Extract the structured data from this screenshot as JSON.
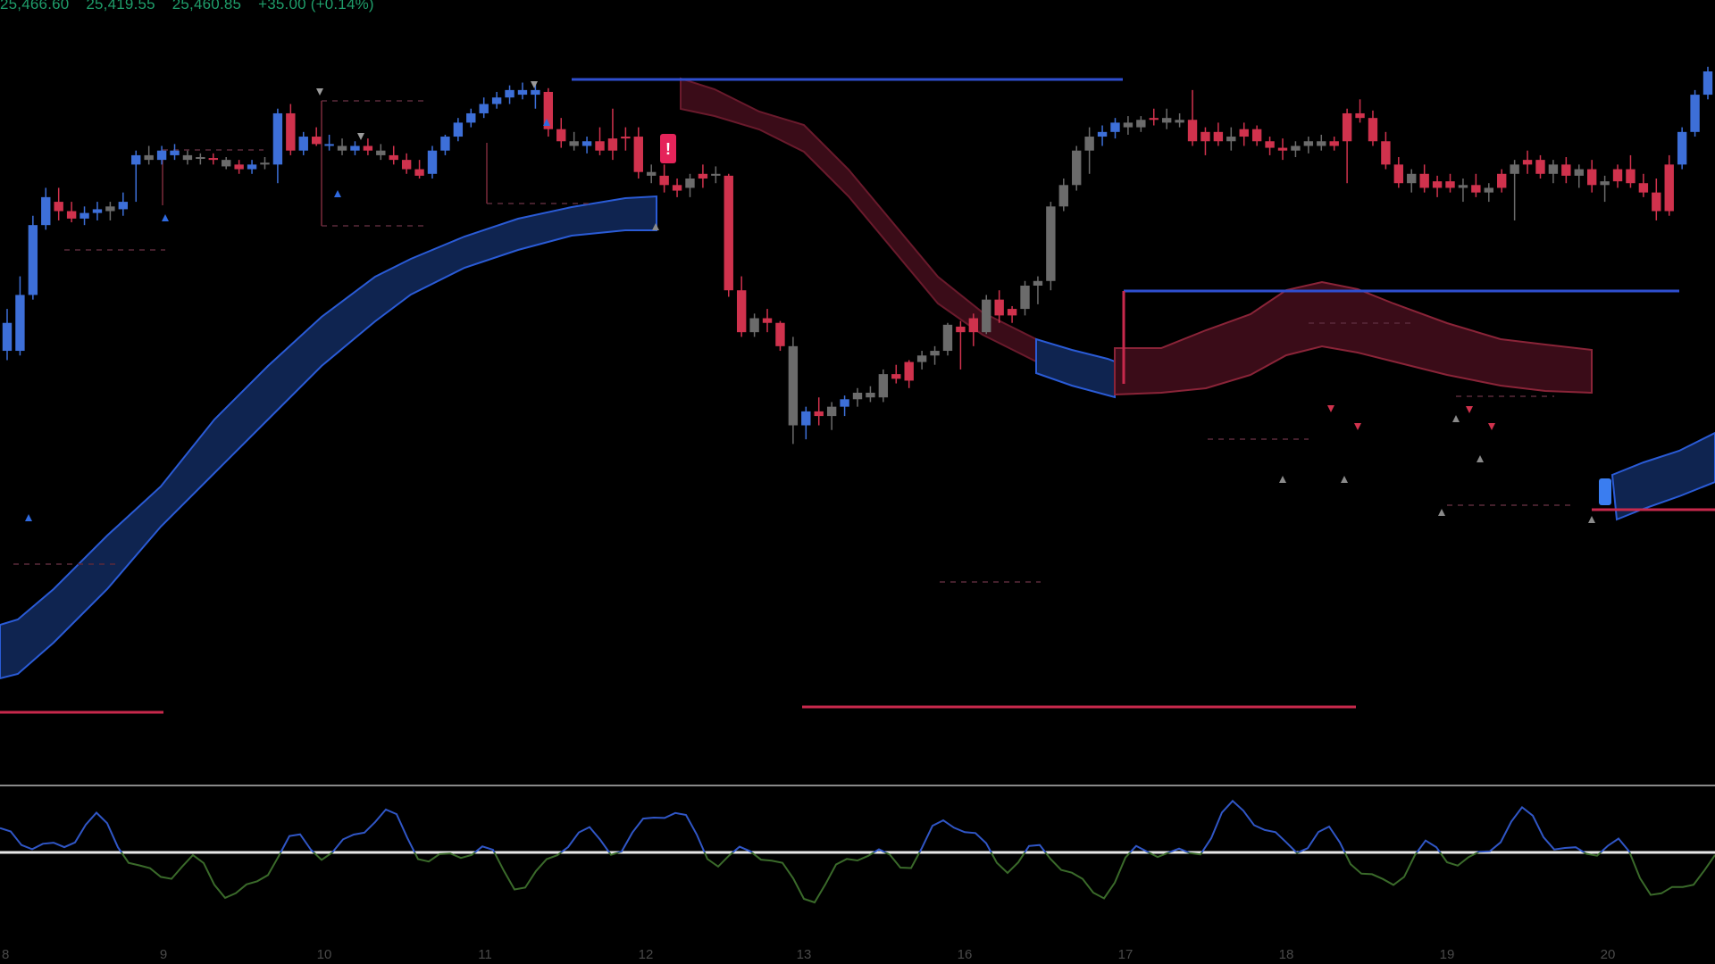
{
  "header": {
    "ohlc": [
      "25,466.60",
      "25,419.55",
      "25,460.85",
      "+35.00 (+0.14%)"
    ]
  },
  "colors": {
    "background": "#000000",
    "bull_candle": "#3d6fd8",
    "bear_candle": "#d0324d",
    "neutral_candle": "#6b6b6b",
    "bull_band": "#0f2450",
    "bear_band": "#3a0c18",
    "resistance_line": "#2f4fd0",
    "support_line": "#c7294c",
    "oscillator_bull": "#3056c6",
    "oscillator_bear": "#3a6a2a"
  },
  "signal": {
    "label": "!"
  },
  "chart_data": {
    "type": "candlestick",
    "x_ticks": [
      "8",
      "9",
      "10",
      "11",
      "12",
      "13",
      "16",
      "17",
      "18",
      "19",
      "20"
    ],
    "price_range": [
      25050,
      25740
    ],
    "candles": [
      [
        25470,
        25485,
        25430,
        25440,
        "bull"
      ],
      [
        25440,
        25520,
        25435,
        25500,
        "bull"
      ],
      [
        25500,
        25585,
        25495,
        25575,
        "bull"
      ],
      [
        25575,
        25615,
        25570,
        25605,
        "bull"
      ],
      [
        25600,
        25615,
        25580,
        25590,
        "bear"
      ],
      [
        25590,
        25600,
        25578,
        25582,
        "bear"
      ],
      [
        25582,
        25595,
        25575,
        25588,
        "bull"
      ],
      [
        25588,
        25600,
        25580,
        25592,
        "bull"
      ],
      [
        25595,
        25600,
        25580,
        25590,
        "neutral"
      ],
      [
        25592,
        25610,
        25585,
        25600,
        "bull"
      ],
      [
        25640,
        25655,
        25600,
        25650,
        "bull"
      ],
      [
        25650,
        25660,
        25640,
        25645,
        "neutral"
      ],
      [
        25645,
        25660,
        25640,
        25655,
        "bull"
      ],
      [
        25655,
        25662,
        25645,
        25650,
        "bull"
      ],
      [
        25650,
        25655,
        25640,
        25645,
        "neutral"
      ],
      [
        25648,
        25652,
        25640,
        25647,
        "neutral"
      ],
      [
        25647,
        25652,
        25640,
        25645,
        "bear"
      ],
      [
        25645,
        25648,
        25635,
        25638,
        "neutral"
      ],
      [
        25640,
        25645,
        25630,
        25635,
        "bear"
      ],
      [
        25635,
        25645,
        25630,
        25640,
        "bull"
      ],
      [
        25640,
        25648,
        25635,
        25642,
        "neutral"
      ],
      [
        25640,
        25700,
        25620,
        25695,
        "bull"
      ],
      [
        25695,
        25705,
        25650,
        25655,
        "bear"
      ],
      [
        25655,
        25675,
        25650,
        25670,
        "bull"
      ],
      [
        25670,
        25680,
        25660,
        25662,
        "bear"
      ],
      [
        25662,
        25672,
        25655,
        25660,
        "bull"
      ],
      [
        25660,
        25668,
        25650,
        25655,
        "neutral"
      ],
      [
        25655,
        25665,
        25650,
        25660,
        "bull"
      ],
      [
        25660,
        25668,
        25650,
        25655,
        "bear"
      ],
      [
        25655,
        25662,
        25645,
        25650,
        "neutral"
      ],
      [
        25650,
        25660,
        25640,
        25645,
        "bear"
      ],
      [
        25645,
        25652,
        25630,
        25635,
        "bear"
      ],
      [
        25635,
        25645,
        25625,
        25628,
        "bear"
      ],
      [
        25630,
        25660,
        25625,
        25655,
        "bull"
      ],
      [
        25655,
        25672,
        25650,
        25670,
        "bull"
      ],
      [
        25670,
        25690,
        25665,
        25685,
        "bull"
      ],
      [
        25685,
        25700,
        25680,
        25695,
        "bull"
      ],
      [
        25695,
        25712,
        25690,
        25705,
        "bull"
      ],
      [
        25705,
        25718,
        25700,
        25712,
        "bull"
      ],
      [
        25712,
        25725,
        25705,
        25720,
        "bull"
      ],
      [
        25720,
        25728,
        25710,
        25715,
        "bull"
      ],
      [
        25715,
        25728,
        25700,
        25720,
        "bull"
      ],
      [
        25718,
        25722,
        25670,
        25678,
        "bear"
      ],
      [
        25678,
        25690,
        25658,
        25665,
        "bear"
      ],
      [
        25665,
        25675,
        25655,
        25660,
        "neutral"
      ],
      [
        25660,
        25670,
        25652,
        25665,
        "bull"
      ],
      [
        25665,
        25680,
        25650,
        25655,
        "bear"
      ],
      [
        25655,
        25700,
        25645,
        25668,
        "bear"
      ],
      [
        25668,
        25680,
        25655,
        25670,
        "bear"
      ],
      [
        25670,
        25680,
        25625,
        25632,
        "bear"
      ],
      [
        25632,
        25640,
        25620,
        25628,
        "neutral"
      ],
      [
        25628,
        25640,
        25610,
        25618,
        "bear"
      ],
      [
        25618,
        25625,
        25605,
        25612,
        "bear"
      ],
      [
        25615,
        25630,
        25605,
        25625,
        "neutral"
      ],
      [
        25625,
        25640,
        25615,
        25630,
        "bear"
      ],
      [
        25630,
        25638,
        25620,
        25628,
        "neutral"
      ],
      [
        25628,
        25630,
        25498,
        25505,
        "bear"
      ],
      [
        25505,
        25520,
        25455,
        25460,
        "bear"
      ],
      [
        25460,
        25480,
        25455,
        25475,
        "neutral"
      ],
      [
        25475,
        25485,
        25460,
        25470,
        "bear"
      ],
      [
        25470,
        25472,
        25440,
        25445,
        "bear"
      ],
      [
        25445,
        25455,
        25340,
        25360,
        "neutral"
      ],
      [
        25360,
        25380,
        25345,
        25375,
        "bull"
      ],
      [
        25375,
        25390,
        25360,
        25370,
        "bear"
      ],
      [
        25370,
        25385,
        25355,
        25380,
        "neutral"
      ],
      [
        25380,
        25392,
        25370,
        25388,
        "bull"
      ],
      [
        25388,
        25400,
        25380,
        25395,
        "neutral"
      ],
      [
        25395,
        25402,
        25385,
        25390,
        "neutral"
      ],
      [
        25390,
        25420,
        25385,
        25415,
        "neutral"
      ],
      [
        25415,
        25425,
        25405,
        25410,
        "bear"
      ],
      [
        25408,
        25430,
        25400,
        25428,
        "bear"
      ],
      [
        25428,
        25440,
        25420,
        25435,
        "neutral"
      ],
      [
        25435,
        25445,
        25425,
        25440,
        "neutral"
      ],
      [
        25440,
        25470,
        25435,
        25468,
        "neutral"
      ],
      [
        25466,
        25472,
        25420,
        25460,
        "bear"
      ],
      [
        25460,
        25480,
        25445,
        25475,
        "bear"
      ],
      [
        25460,
        25500,
        25458,
        25495,
        "neutral"
      ],
      [
        25495,
        25505,
        25470,
        25478,
        "bear"
      ],
      [
        25478,
        25488,
        25470,
        25485,
        "bear"
      ],
      [
        25485,
        25515,
        25478,
        25510,
        "neutral"
      ],
      [
        25510,
        25520,
        25490,
        25515,
        "neutral"
      ],
      [
        25515,
        25600,
        25505,
        25595,
        "neutral"
      ],
      [
        25595,
        25625,
        25590,
        25618,
        "neutral"
      ],
      [
        25618,
        25660,
        25612,
        25655,
        "neutral"
      ],
      [
        25655,
        25680,
        25630,
        25670,
        "neutral"
      ],
      [
        25670,
        25682,
        25660,
        25675,
        "bull"
      ],
      [
        25675,
        25690,
        25668,
        25685,
        "bull"
      ],
      [
        25685,
        25692,
        25672,
        25680,
        "neutral"
      ],
      [
        25680,
        25692,
        25675,
        25688,
        "neutral"
      ],
      [
        25688,
        25700,
        25682,
        25690,
        "bear"
      ],
      [
        25690,
        25700,
        25678,
        25685,
        "neutral"
      ],
      [
        25685,
        25695,
        25680,
        25688,
        "neutral"
      ],
      [
        25688,
        25720,
        25660,
        25665,
        "bear"
      ],
      [
        25665,
        25680,
        25650,
        25675,
        "bear"
      ],
      [
        25675,
        25685,
        25660,
        25665,
        "bear"
      ],
      [
        25665,
        25680,
        25655,
        25670,
        "neutral"
      ],
      [
        25670,
        25685,
        25660,
        25678,
        "bear"
      ],
      [
        25678,
        25682,
        25660,
        25665,
        "bear"
      ],
      [
        25665,
        25670,
        25650,
        25658,
        "bear"
      ],
      [
        25658,
        25668,
        25645,
        25655,
        "bear"
      ],
      [
        25655,
        25665,
        25648,
        25660,
        "neutral"
      ],
      [
        25660,
        25670,
        25652,
        25665,
        "neutral"
      ],
      [
        25665,
        25672,
        25655,
        25660,
        "neutral"
      ],
      [
        25660,
        25670,
        25655,
        25665,
        "bear"
      ],
      [
        25665,
        25700,
        25620,
        25695,
        "bear"
      ],
      [
        25695,
        25710,
        25685,
        25690,
        "bear"
      ],
      [
        25690,
        25698,
        25660,
        25665,
        "bear"
      ],
      [
        25665,
        25675,
        25635,
        25640,
        "bear"
      ],
      [
        25640,
        25648,
        25615,
        25620,
        "bear"
      ],
      [
        25620,
        25635,
        25610,
        25630,
        "neutral"
      ],
      [
        25630,
        25640,
        25610,
        25615,
        "bear"
      ],
      [
        25615,
        25628,
        25605,
        25622,
        "bear"
      ],
      [
        25622,
        25630,
        25610,
        25615,
        "bear"
      ],
      [
        25615,
        25625,
        25600,
        25618,
        "neutral"
      ],
      [
        25618,
        25630,
        25605,
        25610,
        "bear"
      ],
      [
        25610,
        25620,
        25600,
        25615,
        "neutral"
      ],
      [
        25615,
        25635,
        25610,
        25630,
        "bear"
      ],
      [
        25630,
        25645,
        25580,
        25640,
        "neutral"
      ],
      [
        25640,
        25655,
        25630,
        25645,
        "bear"
      ],
      [
        25645,
        25650,
        25625,
        25630,
        "bear"
      ],
      [
        25630,
        25645,
        25620,
        25640,
        "neutral"
      ],
      [
        25640,
        25648,
        25620,
        25628,
        "bear"
      ],
      [
        25628,
        25640,
        25615,
        25635,
        "neutral"
      ],
      [
        25635,
        25645,
        25610,
        25618,
        "bear"
      ],
      [
        25618,
        25628,
        25600,
        25622,
        "neutral"
      ],
      [
        25622,
        25640,
        25615,
        25635,
        "bear"
      ],
      [
        25635,
        25650,
        25615,
        25620,
        "bear"
      ],
      [
        25620,
        25630,
        25605,
        25610,
        "bear"
      ],
      [
        25610,
        25625,
        25580,
        25590,
        "bear"
      ],
      [
        25590,
        25650,
        25585,
        25640,
        "bear"
      ],
      [
        25640,
        25680,
        25635,
        25675,
        "bull"
      ],
      [
        25675,
        25720,
        25670,
        25715,
        "bull"
      ],
      [
        25715,
        25745,
        25710,
        25740,
        "bull"
      ]
    ]
  }
}
